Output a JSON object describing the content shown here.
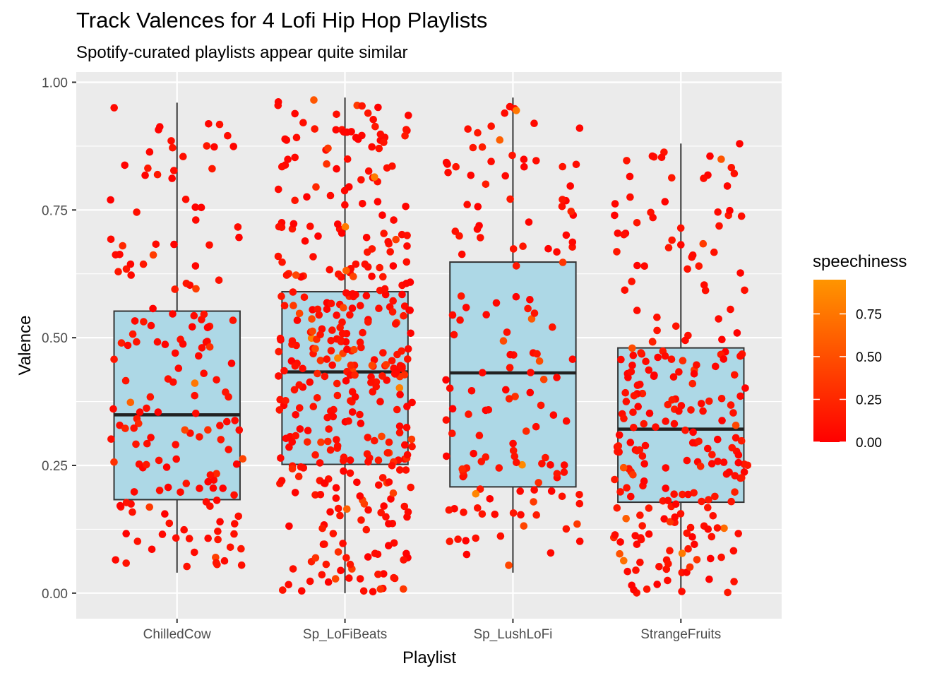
{
  "chart_data": {
    "type": "boxplot",
    "title": "Track Valences for 4 Lofi Hip Hop Playlists",
    "subtitle": "Spotify-curated playlists appear quite similar",
    "xlabel": "Playlist",
    "ylabel": "Valence",
    "ylim": [
      -0.05,
      1.02
    ],
    "y_ticks": [
      "0.00",
      "0.25",
      "0.50",
      "0.75",
      "1.00"
    ],
    "y_tick_values": [
      0.0,
      0.25,
      0.5,
      0.75,
      1.0
    ],
    "grid": true,
    "box_fill": "#add8e6",
    "box_stroke": "#333333",
    "panel_background": "#ebebeb",
    "categories": [
      "ChilledCow",
      "Sp_LoFiBeats",
      "Sp_LushLoFi",
      "StrangeFruits"
    ],
    "boxes": [
      {
        "category": "ChilledCow",
        "min": 0.04,
        "q1": 0.183,
        "median": 0.349,
        "q3": 0.552,
        "max": 0.96,
        "n_points": 170
      },
      {
        "category": "Sp_LoFiBeats",
        "min": 0.0,
        "q1": 0.252,
        "median": 0.433,
        "q3": 0.59,
        "max": 0.97,
        "n_points": 400
      },
      {
        "category": "Sp_LushLoFi",
        "min": 0.04,
        "q1": 0.208,
        "median": 0.431,
        "q3": 0.648,
        "max": 0.97,
        "n_points": 150
      },
      {
        "category": "StrangeFruits",
        "min": 0.0,
        "q1": 0.178,
        "median": 0.321,
        "q3": 0.48,
        "max": 0.88,
        "n_points": 250
      }
    ],
    "color_scale": {
      "name": "speechiness",
      "low": "#ff0000",
      "high": "#ff9500",
      "range": [
        0.0,
        0.95
      ],
      "ticks": [
        "0.00",
        "0.25",
        "0.50",
        "0.75"
      ],
      "tick_values": [
        0.0,
        0.25,
        0.5,
        0.75
      ]
    },
    "legend_placement": "right"
  }
}
